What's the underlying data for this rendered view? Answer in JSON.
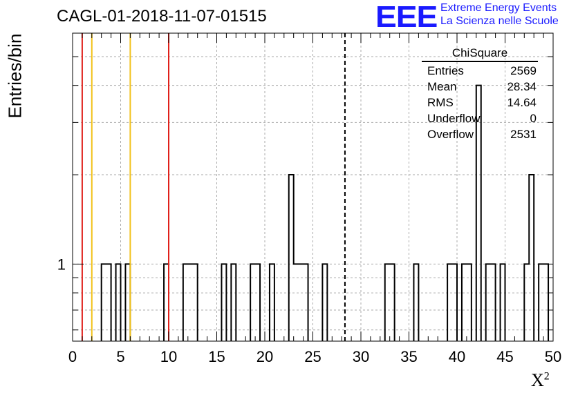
{
  "chart_data": {
    "type": "histogram",
    "title": "CAGL-01-2018-11-07-01515",
    "xlabel": "X",
    "xlabel_sup": "2",
    "ylabel": "Entries/bin",
    "xlim": [
      0,
      50
    ],
    "ylim": [
      0.55,
      6.0
    ],
    "y_scale": "log",
    "grid": true,
    "x_ticks": [
      "0",
      "5",
      "10",
      "15",
      "20",
      "25",
      "30",
      "35",
      "40",
      "45",
      "50"
    ],
    "y_ticks": [
      "1"
    ],
    "bin_width": 0.5,
    "bins": [
      {
        "x": 3.0,
        "y": 1
      },
      {
        "x": 3.5,
        "y": 1
      },
      {
        "x": 4.5,
        "y": 1
      },
      {
        "x": 5.5,
        "y": 1
      },
      {
        "x": 9.5,
        "y": 1
      },
      {
        "x": 11.5,
        "y": 1
      },
      {
        "x": 12.0,
        "y": 1
      },
      {
        "x": 12.5,
        "y": 1
      },
      {
        "x": 15.5,
        "y": 1
      },
      {
        "x": 16.5,
        "y": 1
      },
      {
        "x": 18.5,
        "y": 1
      },
      {
        "x": 19.0,
        "y": 1
      },
      {
        "x": 20.5,
        "y": 1
      },
      {
        "x": 22.5,
        "y": 2
      },
      {
        "x": 23.0,
        "y": 1
      },
      {
        "x": 23.5,
        "y": 1
      },
      {
        "x": 24.0,
        "y": 1
      },
      {
        "x": 26.0,
        "y": 1
      },
      {
        "x": 32.5,
        "y": 1
      },
      {
        "x": 33.0,
        "y": 1
      },
      {
        "x": 35.5,
        "y": 1
      },
      {
        "x": 39.0,
        "y": 1
      },
      {
        "x": 39.5,
        "y": 1
      },
      {
        "x": 40.5,
        "y": 1
      },
      {
        "x": 41.0,
        "y": 1
      },
      {
        "x": 42.0,
        "y": 4
      },
      {
        "x": 43.0,
        "y": 1
      },
      {
        "x": 43.5,
        "y": 1
      },
      {
        "x": 44.5,
        "y": 1
      },
      {
        "x": 47.0,
        "y": 1
      },
      {
        "x": 47.5,
        "y": 2
      },
      {
        "x": 48.5,
        "y": 1
      },
      {
        "x": 49.0,
        "y": 1
      }
    ],
    "vertical_lines": [
      {
        "x": 1,
        "color": "#e0201a",
        "style": "solid"
      },
      {
        "x": 2,
        "color": "#f2c21a",
        "style": "solid"
      },
      {
        "x": 6,
        "color": "#f2c21a",
        "style": "solid"
      },
      {
        "x": 10,
        "color": "#e0201a",
        "style": "solid"
      },
      {
        "x": 28.34,
        "color": "#000000",
        "style": "dashed"
      }
    ],
    "stats": {
      "name": "ChiSquare",
      "rows": [
        {
          "label": "Entries",
          "value": "2569"
        },
        {
          "label": "Mean",
          "value": "28.34"
        },
        {
          "label": "RMS",
          "value": "14.64"
        },
        {
          "label": "Underflow",
          "value": "0"
        },
        {
          "label": "Overflow",
          "value": "2531"
        }
      ]
    }
  },
  "logo": {
    "text": "EEE",
    "line1": "Extreme Energy Events",
    "line2": "La Scienza nelle Scuole",
    "color": "#1a1aff"
  }
}
